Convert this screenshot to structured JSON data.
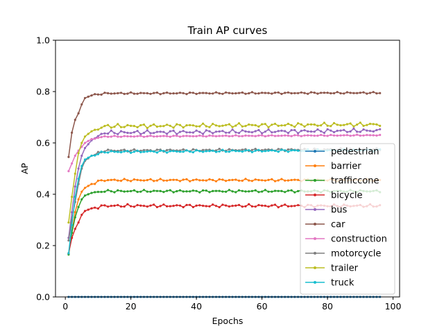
{
  "chart_data": {
    "type": "line",
    "title": "Train AP curves",
    "xlabel": "Epochs",
    "ylabel": "AP",
    "xlim": [
      -3,
      102
    ],
    "ylim": [
      0.0,
      1.0
    ],
    "xticks": [
      "0",
      "20",
      "40",
      "60",
      "80",
      "100"
    ],
    "xtick_values": [
      0,
      20,
      40,
      60,
      80,
      100
    ],
    "yticks": [
      "0.0",
      "0.2",
      "0.4",
      "0.6",
      "0.8",
      "1.0"
    ],
    "ytick_values": [
      0.0,
      0.2,
      0.4,
      0.6,
      0.8,
      1.0
    ],
    "grid": false,
    "legend_placement": "lower-right",
    "epochs": [
      1,
      96
    ],
    "series": [
      {
        "name": "pedestrian",
        "color": "#1f77b4",
        "anchors": [
          [
            1,
            0.0
          ],
          [
            96,
            0.0
          ]
        ],
        "noise": 0.0
      },
      {
        "name": "barrier",
        "color": "#ff7f0e",
        "anchors": [
          [
            1,
            0.17
          ],
          [
            2,
            0.25
          ],
          [
            3,
            0.33
          ],
          [
            4,
            0.38
          ],
          [
            5,
            0.41
          ],
          [
            6,
            0.425
          ],
          [
            8,
            0.44
          ],
          [
            10,
            0.45
          ],
          [
            12,
            0.455
          ],
          [
            96,
            0.455
          ]
        ],
        "noise": 0.004
      },
      {
        "name": "trafficcone",
        "color": "#2ca02c",
        "anchors": [
          [
            1,
            0.165
          ],
          [
            2,
            0.25
          ],
          [
            3,
            0.31
          ],
          [
            4,
            0.35
          ],
          [
            5,
            0.38
          ],
          [
            6,
            0.395
          ],
          [
            8,
            0.405
          ],
          [
            12,
            0.412
          ],
          [
            96,
            0.412
          ]
        ],
        "noise": 0.004
      },
      {
        "name": "bicycle",
        "color": "#d62728",
        "anchors": [
          [
            1,
            0.17
          ],
          [
            2,
            0.23
          ],
          [
            3,
            0.265
          ],
          [
            4,
            0.29
          ],
          [
            5,
            0.32
          ],
          [
            6,
            0.335
          ],
          [
            8,
            0.345
          ],
          [
            12,
            0.355
          ],
          [
            96,
            0.355
          ]
        ],
        "noise": 0.005
      },
      {
        "name": "bus",
        "color": "#9467bd",
        "anchors": [
          [
            1,
            0.23
          ],
          [
            2,
            0.33
          ],
          [
            3,
            0.43
          ],
          [
            4,
            0.5
          ],
          [
            5,
            0.55
          ],
          [
            6,
            0.58
          ],
          [
            8,
            0.61
          ],
          [
            12,
            0.64
          ],
          [
            96,
            0.648
          ]
        ],
        "noise": 0.007
      },
      {
        "name": "car",
        "color": "#8c564b",
        "anchors": [
          [
            1,
            0.545
          ],
          [
            2,
            0.64
          ],
          [
            3,
            0.69
          ],
          [
            4,
            0.715
          ],
          [
            5,
            0.75
          ],
          [
            6,
            0.775
          ],
          [
            8,
            0.785
          ],
          [
            12,
            0.793
          ],
          [
            96,
            0.795
          ]
        ],
        "noise": 0.003
      },
      {
        "name": "construction",
        "color": "#e377c2",
        "anchors": [
          [
            1,
            0.49
          ],
          [
            2,
            0.52
          ],
          [
            3,
            0.55
          ],
          [
            4,
            0.57
          ],
          [
            5,
            0.585
          ],
          [
            6,
            0.6
          ],
          [
            8,
            0.615
          ],
          [
            12,
            0.625
          ],
          [
            96,
            0.63
          ]
        ],
        "noise": 0.002
      },
      {
        "name": "motorcycle",
        "color": "#7f7f7f",
        "anchors": [
          [
            1,
            0.22
          ],
          [
            2,
            0.3
          ],
          [
            3,
            0.37
          ],
          [
            4,
            0.44
          ],
          [
            5,
            0.5
          ],
          [
            6,
            0.53
          ],
          [
            8,
            0.55
          ],
          [
            12,
            0.57
          ],
          [
            96,
            0.575
          ]
        ],
        "noise": 0.004
      },
      {
        "name": "trailer",
        "color": "#bcbd22",
        "anchors": [
          [
            1,
            0.29
          ],
          [
            2,
            0.39
          ],
          [
            3,
            0.48
          ],
          [
            4,
            0.56
          ],
          [
            5,
            0.6
          ],
          [
            6,
            0.625
          ],
          [
            8,
            0.645
          ],
          [
            12,
            0.665
          ],
          [
            96,
            0.672
          ]
        ],
        "noise": 0.007
      },
      {
        "name": "truck",
        "color": "#17becf",
        "anchors": [
          [
            1,
            0.17
          ],
          [
            2,
            0.28
          ],
          [
            3,
            0.39
          ],
          [
            4,
            0.46
          ],
          [
            5,
            0.51
          ],
          [
            6,
            0.535
          ],
          [
            8,
            0.55
          ],
          [
            12,
            0.565
          ],
          [
            96,
            0.572
          ]
        ],
        "noise": 0.004
      }
    ]
  }
}
